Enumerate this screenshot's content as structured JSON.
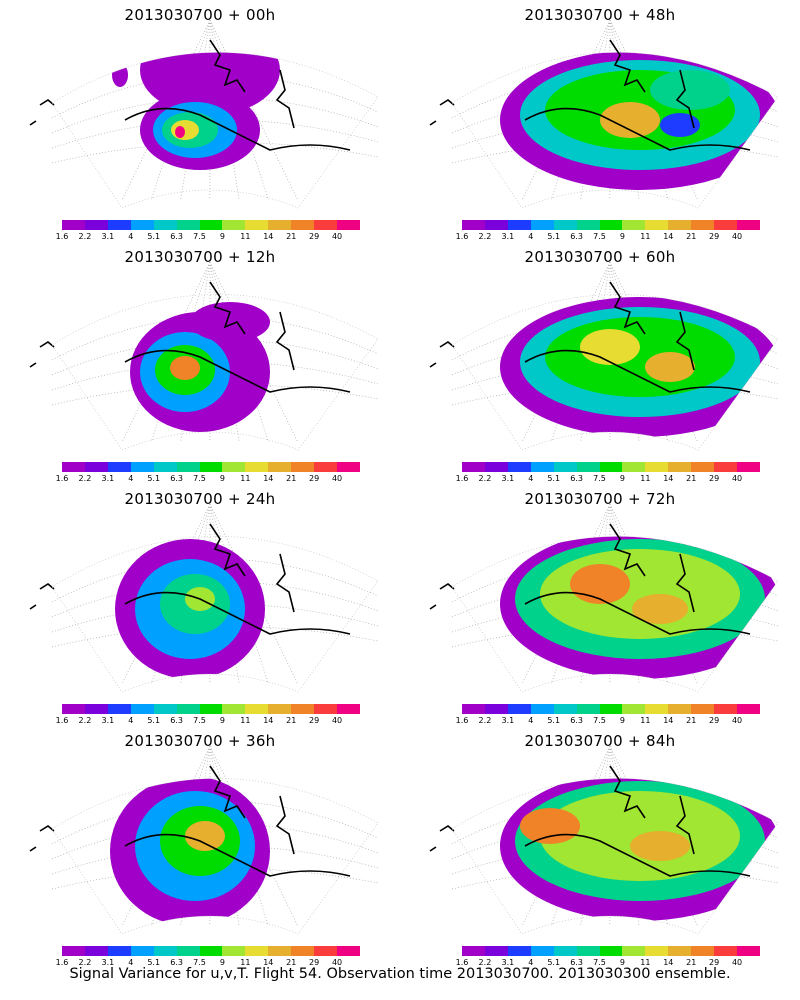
{
  "panels": [
    {
      "id": "p00",
      "title": "2013030700  + 00h"
    },
    {
      "id": "p48",
      "title": "2013030700  + 48h"
    },
    {
      "id": "p12",
      "title": "2013030700  + 12h"
    },
    {
      "id": "p60",
      "title": "2013030700  + 60h"
    },
    {
      "id": "p24",
      "title": "2013030700  + 24h"
    },
    {
      "id": "p72",
      "title": "2013030700  + 72h"
    },
    {
      "id": "p36",
      "title": "2013030700  + 36h"
    },
    {
      "id": "p84",
      "title": "2013030700  + 84h"
    }
  ],
  "colorbar": {
    "ticks": [
      "1.6",
      "2.2",
      "3.1",
      "4",
      "5.1",
      "6.3",
      "7.5",
      "9",
      "11",
      "14",
      "21",
      "29",
      "40"
    ],
    "colors": [
      "#a000c8",
      "#7a00dc",
      "#1e3cff",
      "#00a0ff",
      "#00c8c8",
      "#00d28c",
      "#00dc00",
      "#a0e632",
      "#e6dc32",
      "#e6af2d",
      "#f08228",
      "#fa3c3c",
      "#f00082"
    ]
  },
  "footer": "Signal Variance for u,v,T. Flight 54. Observation time 2013030700. 2013030300 ensemble."
}
